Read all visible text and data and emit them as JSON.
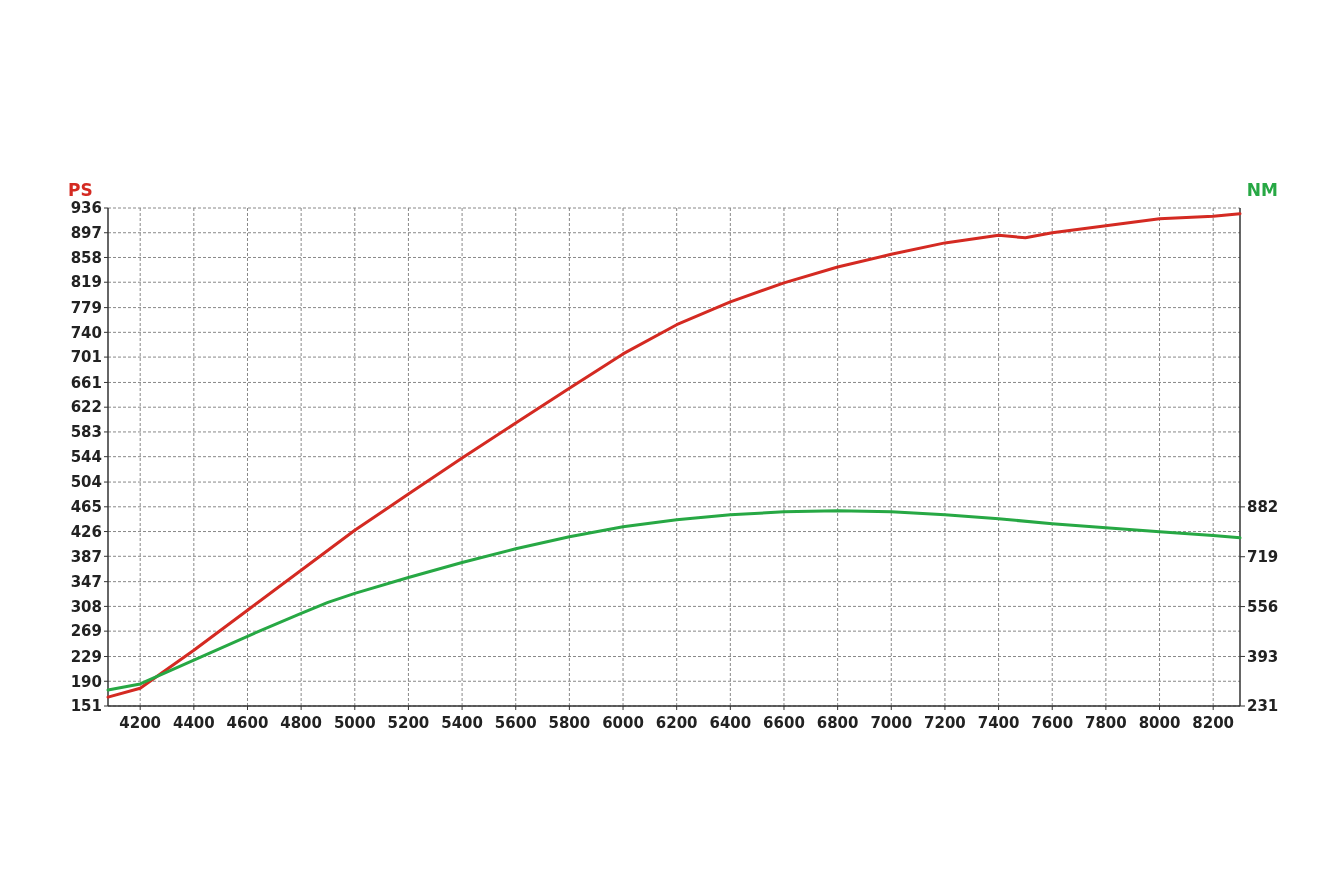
{
  "chart_data": {
    "type": "line",
    "ylabel": "PS",
    "y2label": "NM",
    "grid": true,
    "line_style": "solid",
    "xlim": [
      4080,
      8300
    ],
    "xticks": [
      4200,
      4400,
      4600,
      4800,
      5000,
      5200,
      5400,
      5600,
      5800,
      6000,
      6200,
      6400,
      6600,
      6800,
      7000,
      7200,
      7400,
      7600,
      7800,
      8000,
      8200
    ],
    "ylim": [
      151,
      936
    ],
    "yticks": [
      151,
      190,
      229,
      269,
      308,
      347,
      387,
      426,
      465,
      504,
      544,
      583,
      622,
      661,
      701,
      740,
      779,
      819,
      858,
      897,
      936
    ],
    "y2lim": [
      231,
      1859
    ],
    "y2ticks": [
      231,
      393,
      556,
      719,
      882
    ],
    "series": [
      {
        "color": "#d42a22",
        "x": [
          4080,
          4200,
          4400,
          4600,
          4800,
          5000,
          5200,
          5400,
          5600,
          5800,
          6000,
          6200,
          6400,
          6600,
          6800,
          7000,
          7200,
          7400,
          7500,
          7600,
          7800,
          8000,
          8200,
          8300
        ],
        "values": [
          165,
          179,
          239,
          302,
          365,
          428,
          485,
          542,
          597,
          652,
          706,
          752,
          788,
          818,
          843,
          863,
          881,
          893,
          889,
          897,
          908,
          919,
          923,
          927
        ]
      },
      {
        "color": "#27a844",
        "axis": "y2",
        "x": [
          4080,
          4200,
          4400,
          4600,
          4800,
          4900,
          5000,
          5200,
          5400,
          5600,
          5800,
          6000,
          6200,
          6400,
          6600,
          6800,
          7000,
          7200,
          7400,
          7600,
          7800,
          8000,
          8200,
          8300
        ],
        "values": [
          283,
          303,
          381,
          459,
          534,
          570,
          599,
          651,
          700,
          745,
          784,
          817,
          840,
          856,
          866,
          869,
          866,
          856,
          843,
          827,
          814,
          801,
          788,
          781
        ]
      }
    ]
  }
}
